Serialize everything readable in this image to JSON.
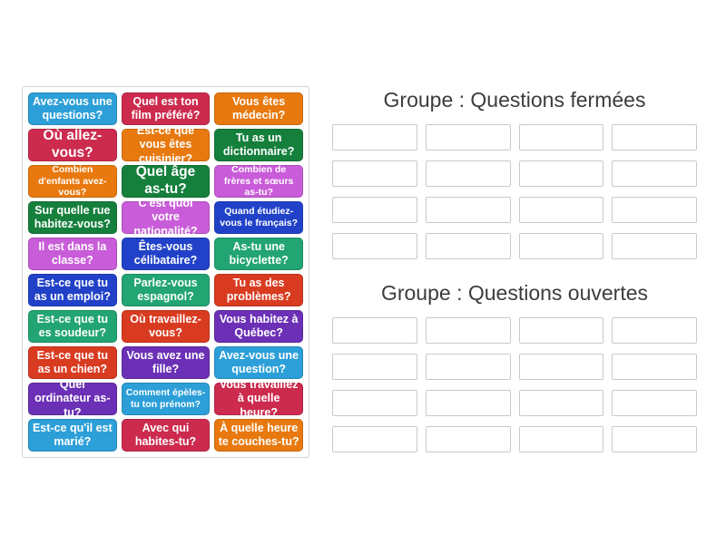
{
  "board": {
    "palette": {
      "skyblue": "#2D9FD8",
      "crimson": "#CC2B4E",
      "orange": "#E8790F",
      "green": "#157F3C",
      "orchid": "#C95CD9",
      "royalblue": "#2142C8",
      "emerald": "#22A573",
      "vermillion": "#D93B21",
      "darkviolet": "#6B30B5"
    },
    "tile_text_color": "#ffffff",
    "tiles": [
      {
        "label": "Avez-vous une questions?",
        "color": "skyblue",
        "size": "m"
      },
      {
        "label": "Quel est ton film préféré?",
        "color": "crimson",
        "size": "m"
      },
      {
        "label": "Vous êtes médecin?",
        "color": "orange",
        "size": "m"
      },
      {
        "label": "Où allez-vous?",
        "color": "crimson",
        "size": "l"
      },
      {
        "label": "Est-ce que vous êtes cuisinier?",
        "color": "orange",
        "size": "m"
      },
      {
        "label": "Tu as un dictionnaire?",
        "color": "green",
        "size": "m"
      },
      {
        "label": "Combien d'enfants avez-vous?",
        "color": "orange",
        "size": "s"
      },
      {
        "label": "Quel âge as-tu?",
        "color": "green",
        "size": "l"
      },
      {
        "label": "Combien de frères et sœurs as-tu?",
        "color": "orchid",
        "size": "s"
      },
      {
        "label": "Sur quelle rue habitez-vous?",
        "color": "green",
        "size": "m"
      },
      {
        "label": "C'est quoi votre nationalité?",
        "color": "orchid",
        "size": "m"
      },
      {
        "label": "Quand étudiez-vous le français?",
        "color": "royalblue",
        "size": "s"
      },
      {
        "label": "Il est dans la classe?",
        "color": "orchid",
        "size": "m"
      },
      {
        "label": "Êtes-vous célibataire?",
        "color": "royalblue",
        "size": "m"
      },
      {
        "label": "As-tu une bicyclette?",
        "color": "emerald",
        "size": "m"
      },
      {
        "label": "Est-ce que tu as un emploi?",
        "color": "royalblue",
        "size": "m"
      },
      {
        "label": "Parlez-vous espagnol?",
        "color": "emerald",
        "size": "m"
      },
      {
        "label": "Tu as des problèmes?",
        "color": "vermillion",
        "size": "m"
      },
      {
        "label": "Est-ce que tu es soudeur?",
        "color": "emerald",
        "size": "m"
      },
      {
        "label": "Où travaillez-vous?",
        "color": "vermillion",
        "size": "m"
      },
      {
        "label": "Vous habitez à Québec?",
        "color": "darkviolet",
        "size": "m"
      },
      {
        "label": "Est-ce que tu as un chien?",
        "color": "vermillion",
        "size": "m"
      },
      {
        "label": "Vous avez une fille?",
        "color": "darkviolet",
        "size": "m"
      },
      {
        "label": "Avez-vous une question?",
        "color": "skyblue",
        "size": "m"
      },
      {
        "label": "Quel ordinateur as-tu?",
        "color": "darkviolet",
        "size": "m"
      },
      {
        "label": "Comment épèles-tu ton prénom?",
        "color": "skyblue",
        "size": "s"
      },
      {
        "label": "Vous travaillez à quelle heure?",
        "color": "crimson",
        "size": "m"
      },
      {
        "label": "Est-ce qu'il est marié?",
        "color": "skyblue",
        "size": "m"
      },
      {
        "label": "Avec qui habites-tu?",
        "color": "crimson",
        "size": "m"
      },
      {
        "label": "À quelle heure te couches-tu?",
        "color": "orange",
        "size": "m"
      }
    ]
  },
  "groups": [
    {
      "title": "Groupe : Questions fermées",
      "slot_count": 16,
      "columns": 4
    },
    {
      "title": "Groupe : Questions ouvertes",
      "slot_count": 16,
      "columns": 4
    }
  ]
}
